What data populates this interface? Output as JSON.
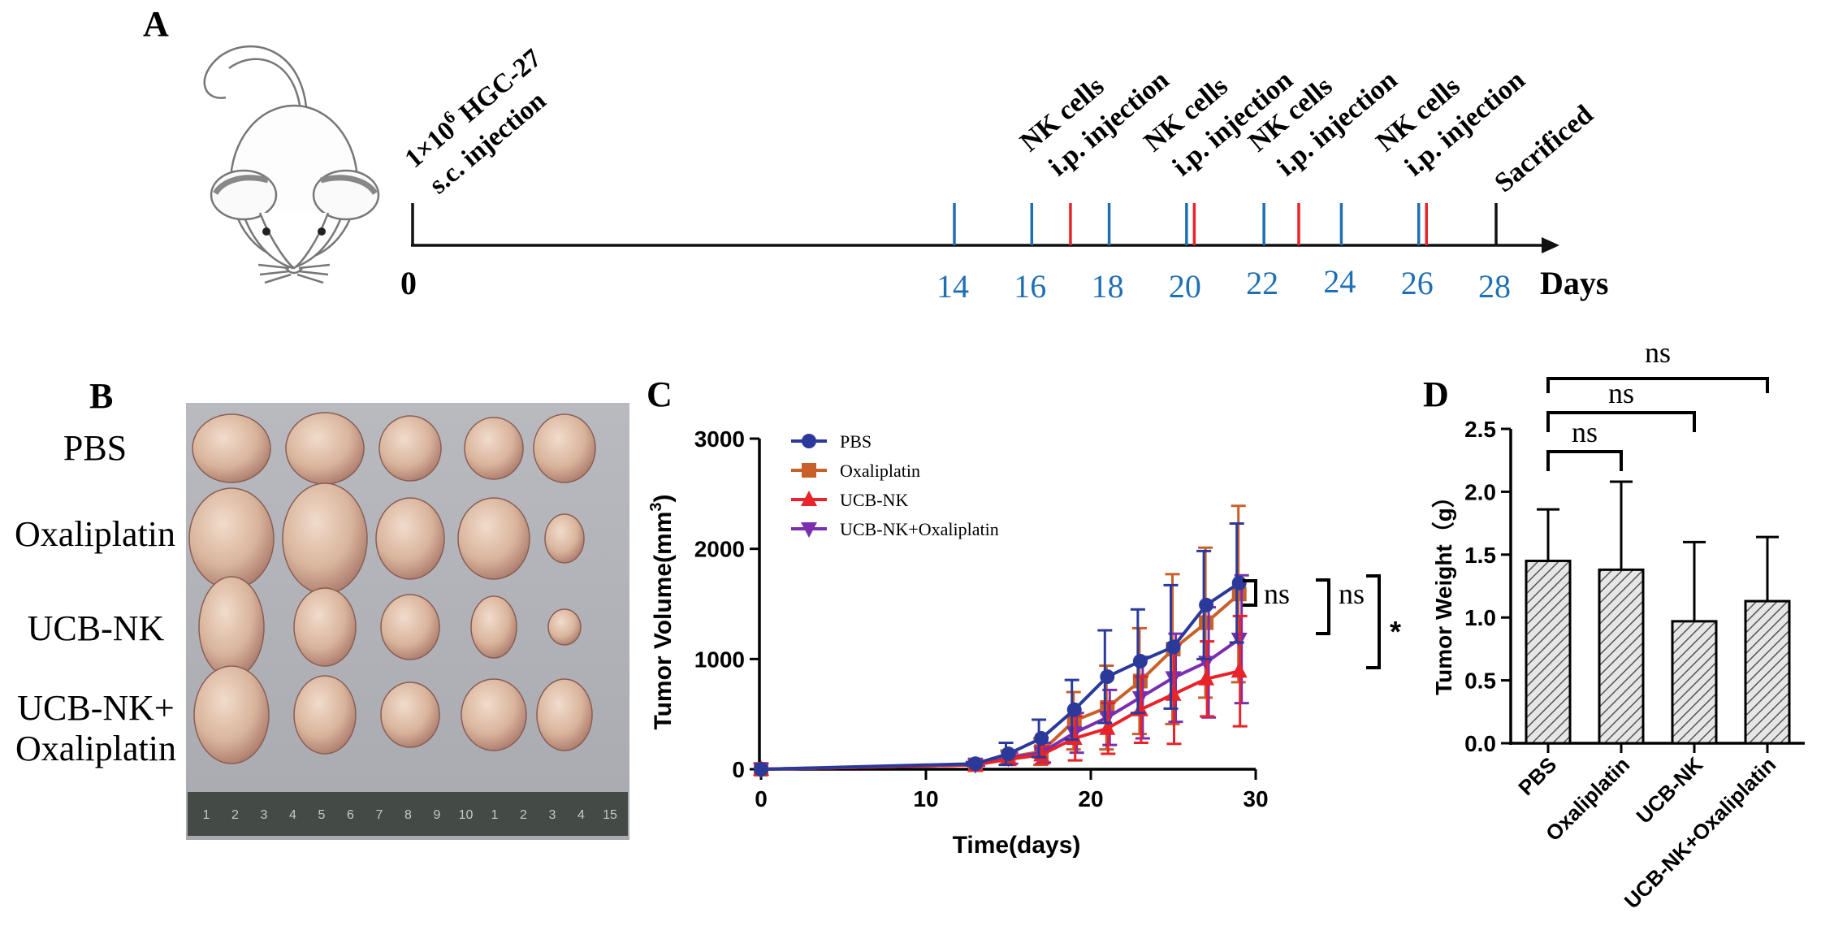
{
  "panel_labels": {
    "a": "A",
    "b": "B",
    "c": "C",
    "d": "D"
  },
  "colors": {
    "blue": "#1f6fb4",
    "red": "#e8232a",
    "pbs": "#2b3a9a",
    "oxaliplatin": "#c8602a",
    "ucbnk": "#e8232a",
    "combo": "#7b2fb0"
  },
  "timeline": {
    "start_label": "0",
    "unit_label": "Days",
    "day_ticks": [
      "14",
      "16",
      "18",
      "20",
      "22",
      "24",
      "26",
      "28"
    ],
    "injection": {
      "line1": "1×10",
      "sup": "6",
      "line1b": " HGC-27",
      "line2": "s.c. injection"
    },
    "nk_line1": "NK cells",
    "nk_line2": "i.p. injection",
    "end_label": "Sacrificed",
    "nk_days": [
      17,
      20.2,
      22.9,
      26.2
    ],
    "measure_days": [
      14,
      16,
      18,
      20,
      22,
      24,
      26
    ],
    "end_day": 28
  },
  "photo": {
    "row_labels": [
      {
        "line1": "PBS",
        "line2": ""
      },
      {
        "line1": "Oxaliplatin",
        "line2": ""
      },
      {
        "line1": "UCB-NK",
        "line2": ""
      },
      {
        "line1": "UCB-NK+",
        "line2": "Oxaliplatin"
      }
    ],
    "ruler_labels": [
      "1",
      "2",
      "3",
      "4",
      "5",
      "6",
      "7",
      "8",
      "9",
      "10",
      "1",
      "2",
      "3",
      "4",
      "15"
    ]
  },
  "chart_data": [
    {
      "type": "line",
      "title": "",
      "xlabel": "Time(days)",
      "ylabel": "Tumor Volume(mm",
      "ylabel_sup": "3",
      "ylabel_close": ")",
      "xlim": [
        0,
        30
      ],
      "ylim": [
        0,
        3000
      ],
      "xticks": [
        "0",
        "10",
        "20",
        "30"
      ],
      "yticks": [
        "0",
        "1000",
        "2000",
        "3000"
      ],
      "x": [
        0,
        13,
        15,
        17,
        19,
        21,
        23,
        25,
        27,
        29
      ],
      "series": [
        {
          "name": "PBS",
          "marker": "circle",
          "values": [
            0,
            50,
            140,
            280,
            540,
            840,
            980,
            1110,
            1490,
            1690
          ],
          "errors": [
            0,
            15,
            100,
            170,
            270,
            420,
            470,
            560,
            490,
            540
          ]
        },
        {
          "name": "Oxaliplatin",
          "marker": "square",
          "values": [
            0,
            40,
            110,
            160,
            440,
            560,
            800,
            1090,
            1330,
            1590
          ],
          "errors": [
            0,
            15,
            60,
            120,
            260,
            380,
            480,
            680,
            680,
            800
          ]
        },
        {
          "name": "UCB-NK",
          "marker": "triangle-up",
          "values": [
            0,
            40,
            90,
            130,
            280,
            370,
            540,
            680,
            820,
            890
          ],
          "errors": [
            0,
            10,
            50,
            80,
            200,
            230,
            300,
            450,
            340,
            500
          ]
        },
        {
          "name": "UCB-NK+Oxaliplatin",
          "marker": "triangle-down",
          "values": [
            0,
            40,
            100,
            150,
            330,
            470,
            650,
            830,
            970,
            1180
          ],
          "errors": [
            0,
            10,
            50,
            90,
            180,
            250,
            370,
            400,
            500,
            580
          ]
        }
      ],
      "annotations": [
        "ns",
        "ns",
        "*"
      ]
    },
    {
      "type": "bar",
      "title": "",
      "xlabel": "",
      "ylabel": "Tumor Weight（g）",
      "ylim": [
        0,
        2.5
      ],
      "yticks": [
        "0.0",
        "0.5",
        "1.0",
        "1.5",
        "2.0",
        "2.5"
      ],
      "categories": [
        "PBS",
        "Oxaliplatin",
        "UCB-NK",
        "UCB-NK+Oxaliplatin"
      ],
      "values": [
        1.45,
        1.38,
        0.97,
        1.13
      ],
      "errors": [
        0.41,
        0.7,
        0.63,
        0.51
      ],
      "annotations": [
        "ns",
        "ns",
        "ns"
      ]
    }
  ]
}
